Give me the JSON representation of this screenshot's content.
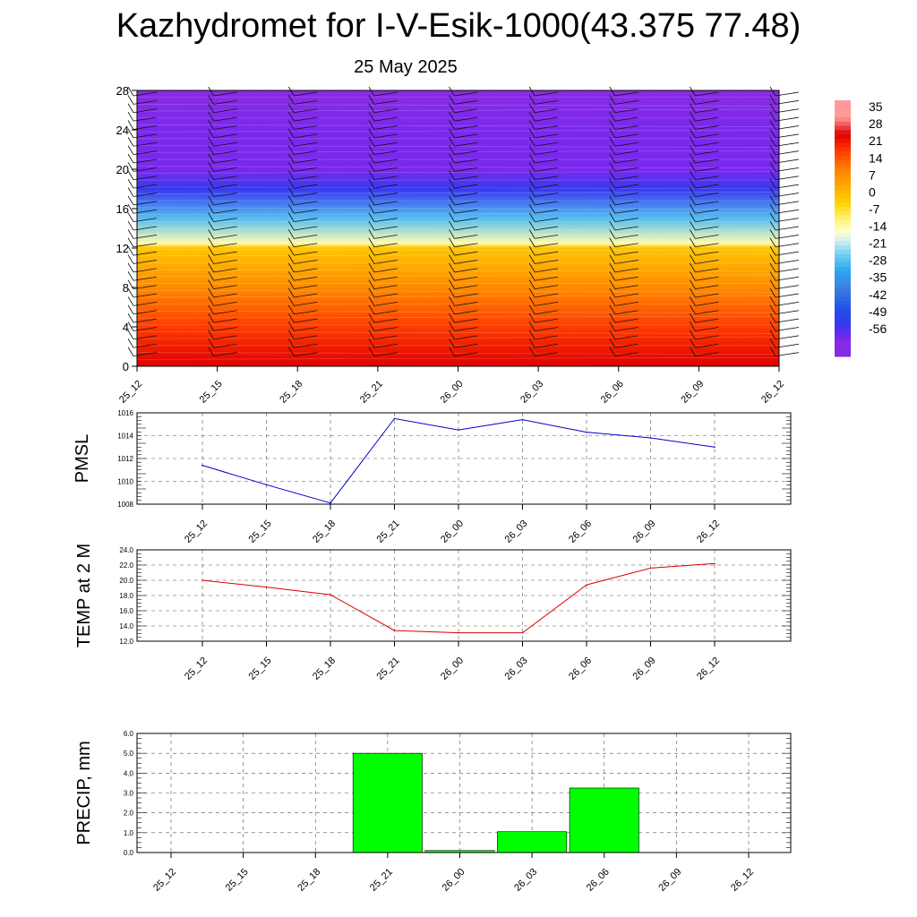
{
  "title": "Kazhydromet for I-V-Esik-1000(43.375 77.48)",
  "subtitle": "25 May 2025",
  "colorbar": {
    "labels": [
      "35",
      "28",
      "21",
      "14",
      "7",
      "0",
      "-7",
      "-14",
      "-21",
      "-28",
      "-35",
      "-42",
      "-49",
      "-56"
    ]
  },
  "chart_data": [
    {
      "type": "heatmap",
      "title": "",
      "xlabel": "",
      "ylabel": "",
      "x_ticks": [
        "25_12",
        "25_15",
        "25_18",
        "25_21",
        "26_00",
        "26_03",
        "26_06",
        "26_09",
        "26_12"
      ],
      "y_ticks": [
        "0",
        "4",
        "8",
        "12",
        "16",
        "20",
        "24",
        "28"
      ],
      "ylim": [
        0,
        28
      ],
      "color_range": [
        -56,
        35
      ],
      "temperature_profile": [
        {
          "level": 0,
          "value": 28
        },
        {
          "level": 4,
          "value": 21
        },
        {
          "level": 8,
          "value": 12
        },
        {
          "level": 12,
          "value": 2
        },
        {
          "level": 12.5,
          "value": -10
        },
        {
          "level": 15,
          "value": -24
        },
        {
          "level": 18,
          "value": -50
        },
        {
          "level": 20,
          "value": -56
        },
        {
          "level": 24,
          "value": -56
        },
        {
          "level": 28,
          "value": -60
        }
      ]
    },
    {
      "type": "line",
      "title": "",
      "ylabel": "PMSL",
      "x_ticks": [
        "25_12",
        "25_15",
        "25_18",
        "25_21",
        "26_00",
        "26_03",
        "26_06",
        "26_09",
        "26_12"
      ],
      "y_ticks": [
        "1008",
        "1010",
        "1012",
        "1014",
        "1016"
      ],
      "ylim": [
        1008,
        1016
      ],
      "color": "#0000cc",
      "values": [
        1011.4,
        1009.7,
        1008.1,
        1015.5,
        1014.5,
        1015.4,
        1014.3,
        1013.8,
        1013.0
      ]
    },
    {
      "type": "line",
      "title": "",
      "ylabel": "TEMP at 2 M",
      "x_ticks": [
        "25_12",
        "25_15",
        "25_18",
        "25_21",
        "26_00",
        "26_03",
        "26_06",
        "26_09",
        "26_12"
      ],
      "y_ticks": [
        "12.0",
        "14.0",
        "16.0",
        "18.0",
        "20.0",
        "22.0",
        "24.0"
      ],
      "ylim": [
        12,
        24
      ],
      "color": "#dd0000",
      "values": [
        20.0,
        19.1,
        18.1,
        13.4,
        13.1,
        13.1,
        19.4,
        21.6,
        22.2
      ]
    },
    {
      "type": "bar",
      "title": "",
      "ylabel": "PRECIP, mm",
      "x_ticks": [
        "25_12",
        "25_15",
        "25_18",
        "25_21",
        "26_00",
        "26_03",
        "26_06",
        "26_09",
        "26_12"
      ],
      "y_ticks": [
        "0.0",
        "1.0",
        "2.0",
        "3.0",
        "4.0",
        "5.0",
        "6.0"
      ],
      "ylim": [
        0,
        6
      ],
      "color": "#00ff00",
      "values": [
        0,
        0,
        0,
        5.0,
        0.1,
        1.05,
        3.25,
        0,
        0
      ]
    }
  ]
}
